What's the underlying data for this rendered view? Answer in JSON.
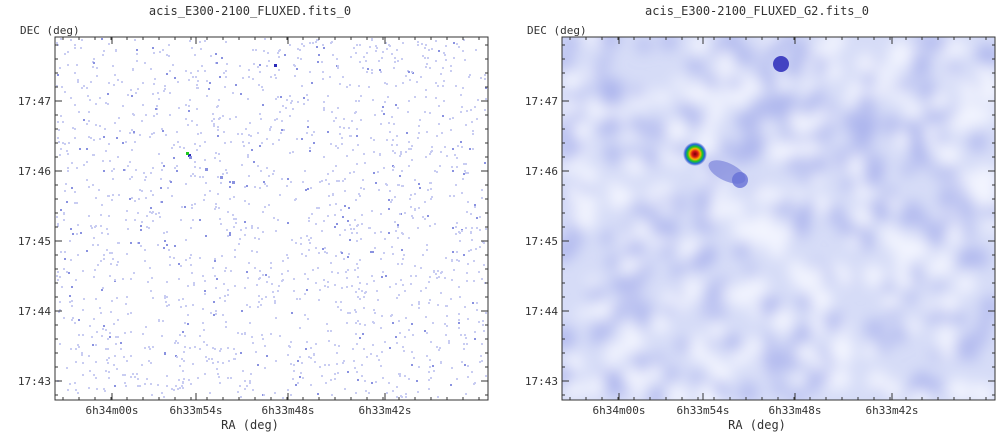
{
  "panels": [
    {
      "title": "acis_E300-2100_FLUXED.fits_0",
      "xlabel": "RA (deg)",
      "ylabel": "DEC (deg)",
      "style": "raw",
      "x_ticks": [
        "6h34m00s",
        "6h33m54s",
        "6h33m48s",
        "6h33m42s"
      ],
      "y_ticks": [
        "17:47",
        "17:46",
        "17:45",
        "17:44",
        "17:43"
      ]
    },
    {
      "title": "acis_E300-2100_FLUXED_G2.fits_0",
      "xlabel": "RA (deg)",
      "ylabel": "DEC (deg)",
      "style": "smoothed",
      "x_ticks": [
        "6h34m00s",
        "6h33m54s",
        "6h33m48s",
        "6h33m42s"
      ],
      "y_ticks": [
        "17:47",
        "17:46",
        "17:45",
        "17:44",
        "17:43"
      ]
    }
  ],
  "colors": {
    "background_raw": "#ffffff",
    "background_smooth": "#d6dcf7",
    "pixel_low": "#c9cdf2",
    "pixel_mid": "#8a92e0",
    "source_core": "#d81818",
    "source_ring": "#1ec81e",
    "source_halo": "#2a2ab8"
  }
}
